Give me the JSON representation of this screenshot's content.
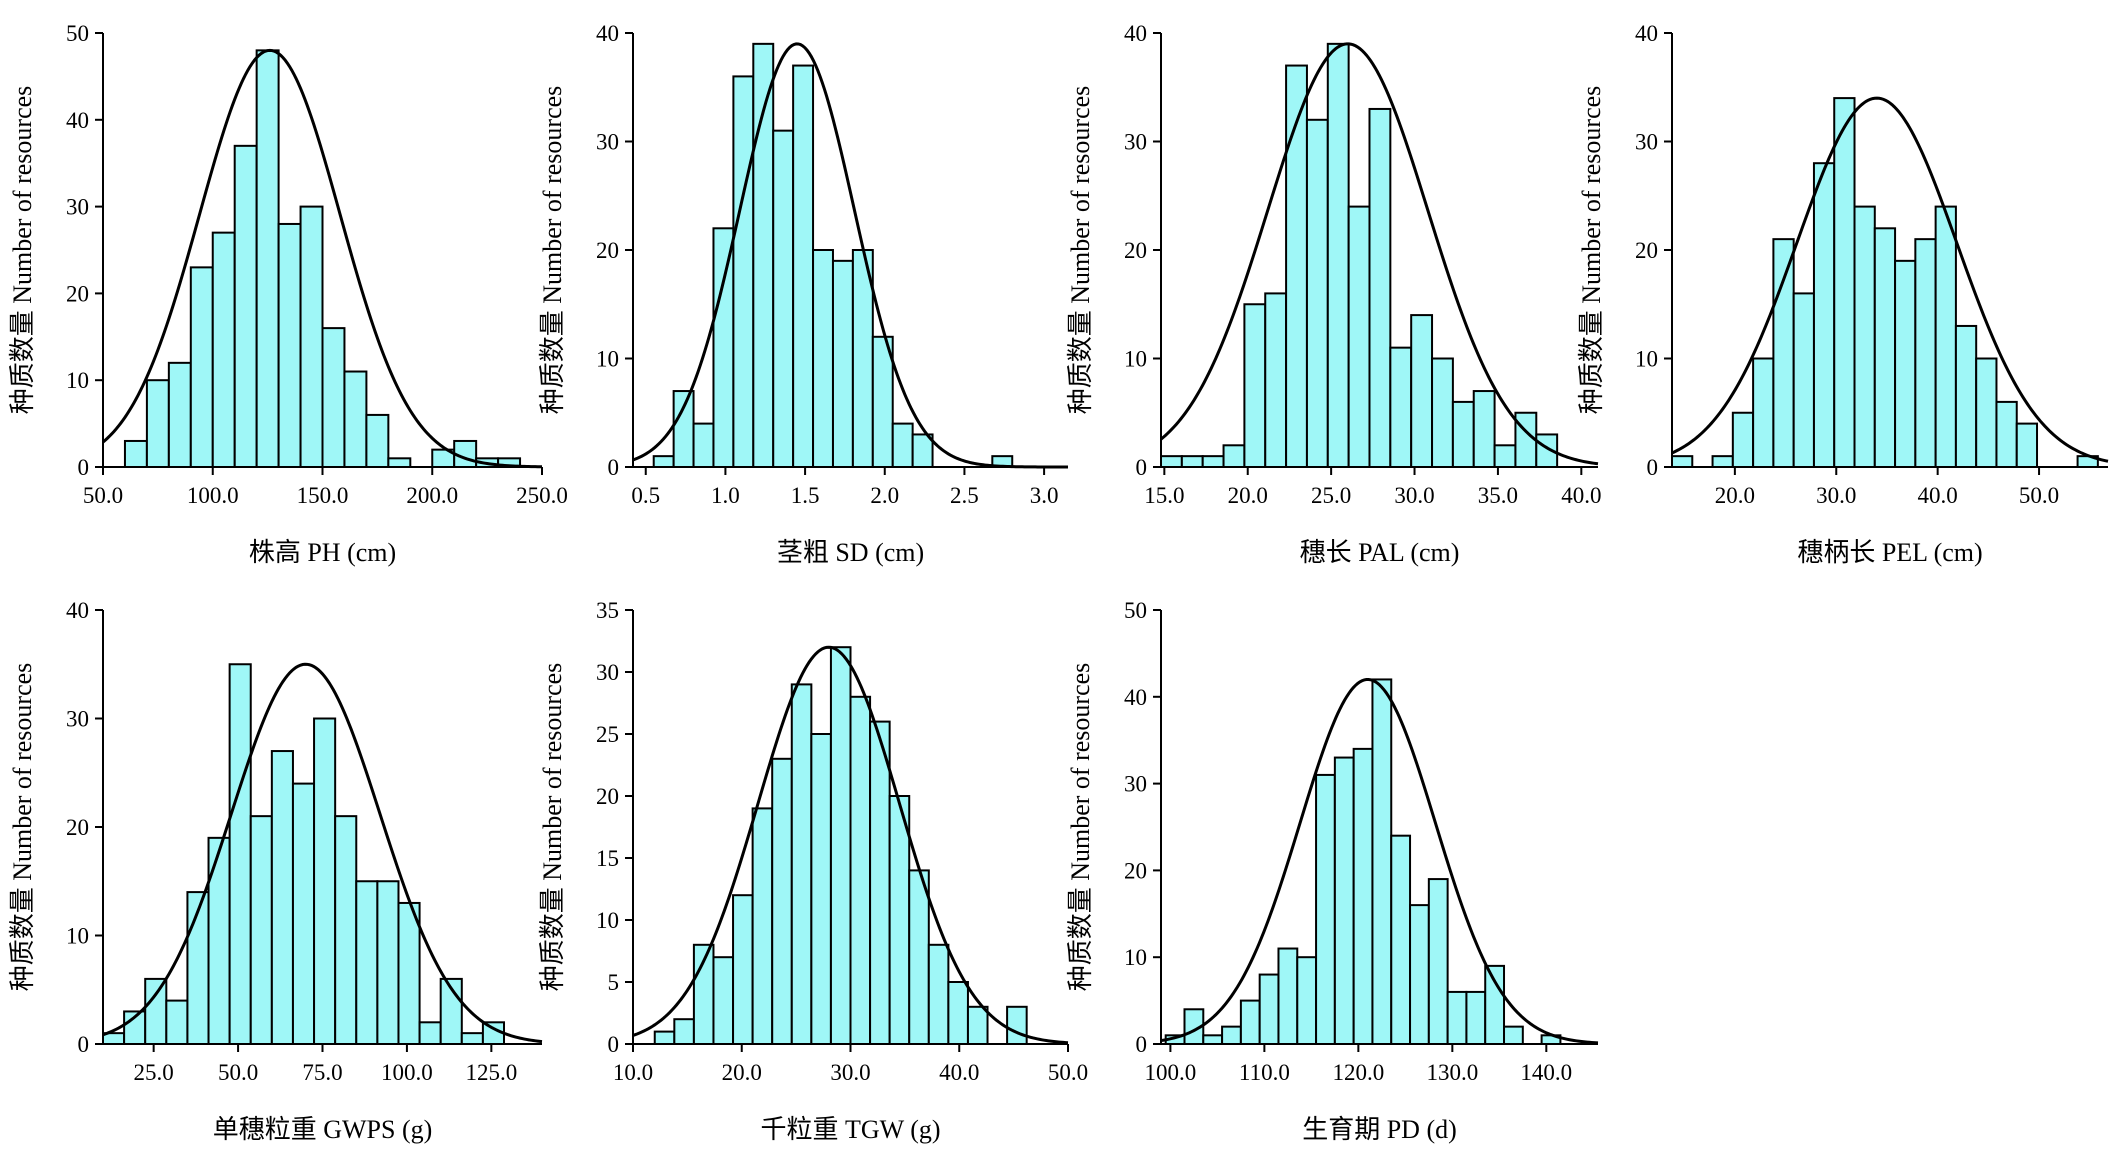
{
  "chart_data": [
    {
      "type": "bar",
      "xlabel": "株高 PH (cm)",
      "ylabel": "种质数量 Number of resources",
      "xlim": [
        50,
        250
      ],
      "ylim": [
        0,
        50
      ],
      "xticks": [
        50,
        100,
        150,
        200,
        250
      ],
      "xtick_labels": [
        "50.0",
        "100.0",
        "150.0",
        "200.0",
        "250.0"
      ],
      "yticks": [
        0,
        10,
        20,
        30,
        40,
        50
      ],
      "bin_start": 60,
      "bin_width": 10,
      "values": [
        3,
        10,
        12,
        23,
        27,
        37,
        48,
        28,
        30,
        16,
        11,
        6,
        1,
        0,
        2,
        3,
        1,
        1
      ],
      "normal_curve": {
        "mean": 126,
        "sd": 32,
        "peak": 48
      }
    },
    {
      "type": "bar",
      "xlabel": "茎粗 SD (cm)",
      "ylabel": "种质数量 Number of resources",
      "xlim": [
        0.42,
        3.15
      ],
      "ylim": [
        0,
        40
      ],
      "xticks": [
        0.5,
        1.0,
        1.5,
        2.0,
        2.5,
        3.0
      ],
      "xtick_labels": [
        "0.5",
        "1.0",
        "1.5",
        "2.0",
        "2.5",
        "3.0"
      ],
      "yticks": [
        0,
        10,
        20,
        30,
        40
      ],
      "bin_start": 0.55,
      "bin_width": 0.125,
      "values": [
        1,
        7,
        4,
        22,
        36,
        39,
        31,
        37,
        20,
        19,
        20,
        12,
        4,
        3,
        0,
        0,
        0,
        1
      ],
      "normal_curve": {
        "mean": 1.45,
        "sd": 0.36,
        "peak": 39
      }
    },
    {
      "type": "bar",
      "xlabel": "穗长 PAL (cm)",
      "ylabel": "种质数量 Number of resources",
      "xlim": [
        14.8,
        41
      ],
      "ylim": [
        0,
        40
      ],
      "xticks": [
        15,
        20,
        25,
        30,
        35,
        40
      ],
      "xtick_labels": [
        "15.0",
        "20.0",
        "25.0",
        "30.0",
        "35.0",
        "40.0"
      ],
      "yticks": [
        0,
        10,
        20,
        30,
        40
      ],
      "bin_start": 14.8,
      "bin_width": 1.25,
      "values": [
        1,
        1,
        1,
        2,
        15,
        16,
        37,
        32,
        39,
        24,
        33,
        11,
        14,
        10,
        6,
        7,
        2,
        5,
        3
      ],
      "normal_curve": {
        "mean": 26,
        "sd": 4.8,
        "peak": 39
      }
    },
    {
      "type": "bar",
      "xlabel": "穗柄长 PEL (cm)",
      "ylabel": "种质数量 Number of resources",
      "xlim": [
        13.8,
        56.8
      ],
      "ylim": [
        0,
        40
      ],
      "xticks": [
        20,
        30,
        40,
        50
      ],
      "xtick_labels": [
        "20.0",
        "30.0",
        "40.0",
        "50.0"
      ],
      "yticks": [
        0,
        10,
        20,
        30,
        40
      ],
      "bin_start": 13.8,
      "bin_width": 2,
      "values": [
        1,
        0,
        1,
        5,
        10,
        21,
        16,
        28,
        34,
        24,
        22,
        19,
        21,
        24,
        13,
        10,
        6,
        4,
        0,
        0,
        1
      ],
      "normal_curve": {
        "mean": 34,
        "sd": 7.9,
        "peak": 34
      }
    },
    {
      "type": "bar",
      "xlabel": "单穗粒重 GWPS (g)",
      "ylabel": "种质数量 Number of resources",
      "xlim": [
        10,
        140
      ],
      "ylim": [
        0,
        40
      ],
      "xticks": [
        25,
        50,
        75,
        100,
        125
      ],
      "xtick_labels": [
        "25.0",
        "50.0",
        "75.0",
        "100.0",
        "125.0"
      ],
      "yticks": [
        0,
        10,
        20,
        30,
        40
      ],
      "bin_start": 10,
      "bin_width": 6.25,
      "values": [
        1,
        3,
        6,
        4,
        14,
        19,
        35,
        21,
        27,
        24,
        30,
        21,
        15,
        15,
        13,
        2,
        6,
        1,
        2
      ],
      "normal_curve": {
        "mean": 70,
        "sd": 22,
        "peak": 35
      }
    },
    {
      "type": "bar",
      "xlabel": "千粒重 TGW (g)",
      "ylabel": "种质数量 Number of resources",
      "xlim": [
        10,
        50
      ],
      "ylim": [
        0,
        35
      ],
      "xticks": [
        10,
        20,
        30,
        40,
        50
      ],
      "xtick_labels": [
        "10.0",
        "20.0",
        "30.0",
        "40.0",
        "50.0"
      ],
      "yticks": [
        0,
        5,
        10,
        15,
        20,
        25,
        30,
        35
      ],
      "bin_start": 12,
      "bin_width": 1.8,
      "values": [
        1,
        2,
        8,
        7,
        12,
        19,
        23,
        29,
        25,
        32,
        28,
        26,
        20,
        14,
        8,
        5,
        3,
        0,
        3
      ],
      "normal_curve": {
        "mean": 28,
        "sd": 6.5,
        "peak": 32
      }
    },
    {
      "type": "bar",
      "xlabel": "生育期 PD (d)",
      "ylabel": "种质数量 Number of resources",
      "xlim": [
        99,
        145.5
      ],
      "ylim": [
        0,
        50
      ],
      "xticks": [
        100,
        110,
        120,
        130,
        140
      ],
      "xtick_labels": [
        "100.0",
        "110.0",
        "120.0",
        "130.0",
        "140.0"
      ],
      "yticks": [
        0,
        10,
        20,
        30,
        40,
        50
      ],
      "bin_start": 99.5,
      "bin_width": 2,
      "values": [
        1,
        4,
        1,
        2,
        5,
        8,
        11,
        10,
        31,
        33,
        34,
        42,
        24,
        16,
        19,
        6,
        6,
        9,
        2,
        0,
        1
      ],
      "normal_curve": {
        "mean": 121,
        "sd": 7.2,
        "peak": 42
      }
    }
  ]
}
